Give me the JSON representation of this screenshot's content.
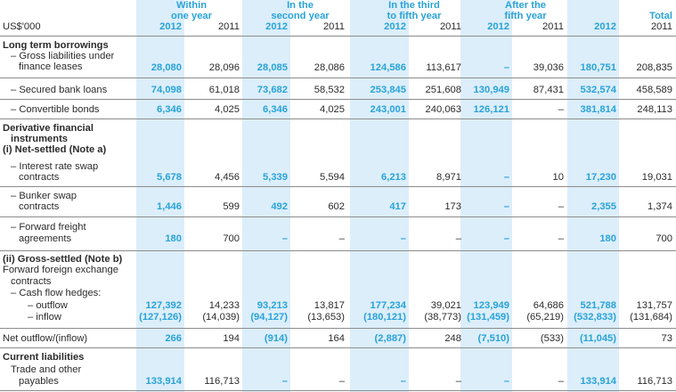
{
  "header": {
    "currency": "US$'000",
    "groups": [
      {
        "l1": "Within",
        "l2": "one year"
      },
      {
        "l1": "In the",
        "l2": "second year"
      },
      {
        "l1": "In the third",
        "l2": "to fifth year"
      },
      {
        "l1": "After the",
        "l2": "fifth year"
      },
      {
        "l1": "",
        "l2": "Total"
      }
    ],
    "years": [
      "2012",
      "2011",
      "2012",
      "2011",
      "2012",
      "2011",
      "2012",
      "2011",
      "2012",
      "2011"
    ]
  },
  "sections": {
    "ltb": "Long term borrowings",
    "deriv1": "Derivative financial",
    "deriv2": "instruments",
    "net_settled": "(i) Net-settled (Note a)",
    "gross_settled": "(ii) Gross-settled (Note b)",
    "ffx1": "Forward foreign exchange",
    "ffx2": "contracts",
    "cfh": "– Cash flow hedges:",
    "current": "Current liabilities"
  },
  "rows": {
    "fin_lease": {
      "l1": "– Gross liabilities under",
      "l2": "finance leases",
      "v": [
        "28,080",
        "28,096",
        "28,085",
        "28,086",
        "124,586",
        "113,617",
        "–",
        "39,036",
        "180,751",
        "208,835"
      ]
    },
    "bank_loans": {
      "l1": "– Secured bank loans",
      "v": [
        "74,098",
        "61,018",
        "73,682",
        "58,532",
        "253,845",
        "251,608",
        "130,949",
        "87,431",
        "532,574",
        "458,589"
      ]
    },
    "conv_bonds": {
      "l1": "– Convertible bonds",
      "v": [
        "6,346",
        "4,025",
        "6,346",
        "4,025",
        "243,001",
        "240,063",
        "126,121",
        "–",
        "381,814",
        "248,113"
      ]
    },
    "irs": {
      "l1": "– Interest rate swap",
      "l2": "contracts",
      "v": [
        "5,678",
        "4,456",
        "5,339",
        "5,594",
        "6,213",
        "8,971",
        "–",
        "10",
        "17,230",
        "19,031"
      ]
    },
    "bunker": {
      "l1": "– Bunker swap",
      "l2": "contracts",
      "v": [
        "1,446",
        "599",
        "492",
        "602",
        "417",
        "173",
        "–",
        "–",
        "2,355",
        "1,374"
      ]
    },
    "ffa": {
      "l1": "– Forward freight",
      "l2": "agreements",
      "v": [
        "180",
        "700",
        "–",
        "–",
        "–",
        "–",
        "–",
        "–",
        "180",
        "700"
      ]
    },
    "outflow": {
      "l1": "– outflow",
      "v": [
        "127,392",
        "14,233",
        "93,213",
        "13,817",
        "177,234",
        "39,021",
        "123,949",
        "64,686",
        "521,788",
        "131,757"
      ]
    },
    "inflow": {
      "l1": "– inflow",
      "v": [
        "(127,126)",
        "(14,039)",
        "(94,127)",
        "(13,653)",
        "(180,121)",
        "(38,773)",
        "(131,459)",
        "(65,219)",
        "(532,833)",
        "(131,684)"
      ]
    },
    "net": {
      "l1": "Net outflow/(inflow)",
      "v": [
        "266",
        "194",
        "(914)",
        "164",
        "(2,887)",
        "248",
        "(7,510)",
        "(533)",
        "(11,045)",
        "73"
      ]
    },
    "payables": {
      "l1": "Trade and other",
      "l2": "payables",
      "v": [
        "133,914",
        "116,713",
        "–",
        "–",
        "–",
        "–",
        "–",
        "–",
        "133,914",
        "116,713"
      ]
    }
  }
}
